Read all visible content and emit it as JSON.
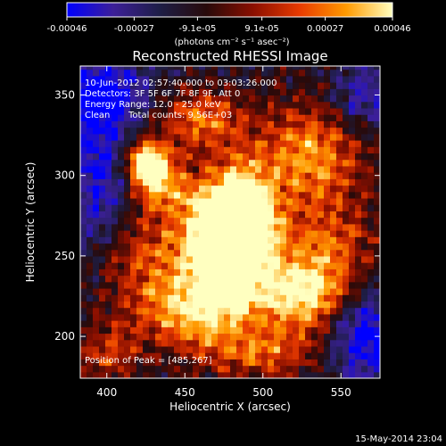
{
  "chart_data": {
    "type": "heatmap",
    "title": "Reconstructed RHESSI Image",
    "xlabel": "Heliocentric X (arcsec)",
    "ylabel": "Heliocentric Y (arcsec)",
    "xlim": [
      383,
      575
    ],
    "ylim": [
      174,
      368
    ],
    "x_ticks": [
      400,
      450,
      500,
      550
    ],
    "y_ticks": [
      200,
      250,
      300,
      350
    ],
    "colorbar": {
      "range": [
        -0.00046,
        0.00046
      ],
      "tick_values": [
        -0.00046,
        -0.00027,
        -9.1e-05,
        9.1e-05,
        0.00027,
        0.00046
      ],
      "tick_labels": [
        "-0.00046",
        "-0.00027",
        "-9.1e-05",
        "9.1e-05",
        "0.00027",
        "0.00046"
      ],
      "unit_label": "(photons cm⁻² s⁻¹ asec⁻²)",
      "colors": [
        "#0000ff",
        "#3c1f98",
        "#1e1e46",
        "#280a0a",
        "#8a0f00",
        "#e83a00",
        "#ff9a00",
        "#ffffc0"
      ]
    },
    "annotations": {
      "time_range": "10-Jun-2012 02:57:40.000 to 03:03:26.000",
      "detectors": "Detectors: 3F 5F 6F 7F 8F 9F, Att 0",
      "energy": "Energy Range: 12.0 - 25.0 keV",
      "clean": "Clean",
      "total_counts": "Total counts: 9.56E+03",
      "peak": "Position of Peak = [485,267]"
    },
    "sources": [
      {
        "x": 485,
        "y": 267,
        "sx": 16,
        "sy": 26,
        "amp": 1.0
      },
      {
        "x": 470,
        "y": 255,
        "sx": 20,
        "sy": 28,
        "amp": 0.55
      },
      {
        "x": 427,
        "y": 308,
        "sx": 10,
        "sy": 9,
        "amp": 0.85
      },
      {
        "x": 437,
        "y": 290,
        "sx": 14,
        "sy": 10,
        "amp": 0.35
      },
      {
        "x": 460,
        "y": 335,
        "sx": 20,
        "sy": 12,
        "amp": 0.4
      },
      {
        "x": 530,
        "y": 315,
        "sx": 22,
        "sy": 20,
        "amp": 0.45
      },
      {
        "x": 540,
        "y": 255,
        "sx": 22,
        "sy": 26,
        "amp": 0.35
      },
      {
        "x": 525,
        "y": 225,
        "sx": 18,
        "sy": 16,
        "amp": 0.55
      },
      {
        "x": 455,
        "y": 215,
        "sx": 26,
        "sy": 16,
        "amp": 0.45
      },
      {
        "x": 420,
        "y": 250,
        "sx": 20,
        "sy": 22,
        "amp": 0.3
      },
      {
        "x": 500,
        "y": 190,
        "sx": 26,
        "sy": 10,
        "amp": 0.35
      },
      {
        "x": 400,
        "y": 190,
        "sx": 14,
        "sy": 12,
        "amp": 0.3
      }
    ],
    "dark_regions": [
      {
        "x": 395,
        "y": 350,
        "sx": 22,
        "sy": 18,
        "amp": -0.45
      },
      {
        "x": 395,
        "y": 290,
        "sx": 14,
        "sy": 30,
        "amp": -0.35
      },
      {
        "x": 565,
        "y": 200,
        "sx": 18,
        "sy": 20,
        "amp": -0.45
      },
      {
        "x": 565,
        "y": 350,
        "sx": 14,
        "sy": 14,
        "amp": -0.3
      }
    ]
  },
  "footer": {
    "timestamp": "15-May-2014 23:04"
  }
}
